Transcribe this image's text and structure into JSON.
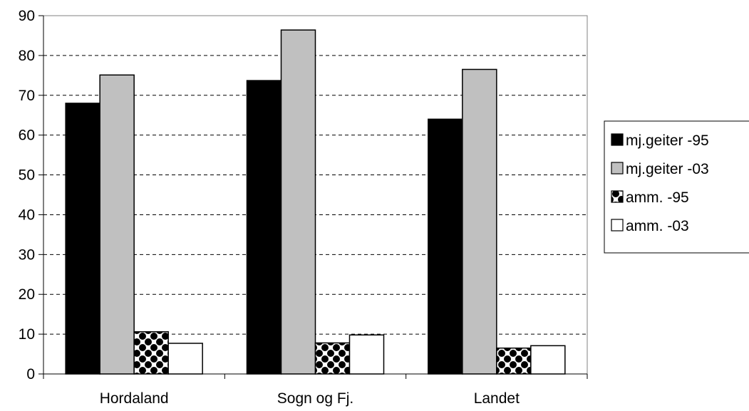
{
  "chart_data": {
    "type": "bar",
    "categories": [
      "Hordaland",
      "Sogn og Fj.",
      "Landet"
    ],
    "series": [
      {
        "name": "mj.geiter -95",
        "values": [
          68,
          73.7,
          64
        ],
        "color": "#000000",
        "fill": "solid"
      },
      {
        "name": "mj.geiter -03",
        "values": [
          75.1,
          86.4,
          76.5
        ],
        "color": "#c0c0c0",
        "fill": "solid"
      },
      {
        "name": "amm. -95",
        "values": [
          10.6,
          7.8,
          6.5
        ],
        "color": "#000000",
        "fill": "pattern"
      },
      {
        "name": "amm. -03",
        "values": [
          7.7,
          9.8,
          7.1
        ],
        "color": "#ffffff",
        "fill": "solid"
      }
    ],
    "yticks": [
      "0",
      "10",
      "20",
      "30",
      "40",
      "50",
      "60",
      "70",
      "80",
      "90"
    ],
    "ylim": [
      0,
      90
    ],
    "grid": "dashed horizontal",
    "legend": "right"
  }
}
